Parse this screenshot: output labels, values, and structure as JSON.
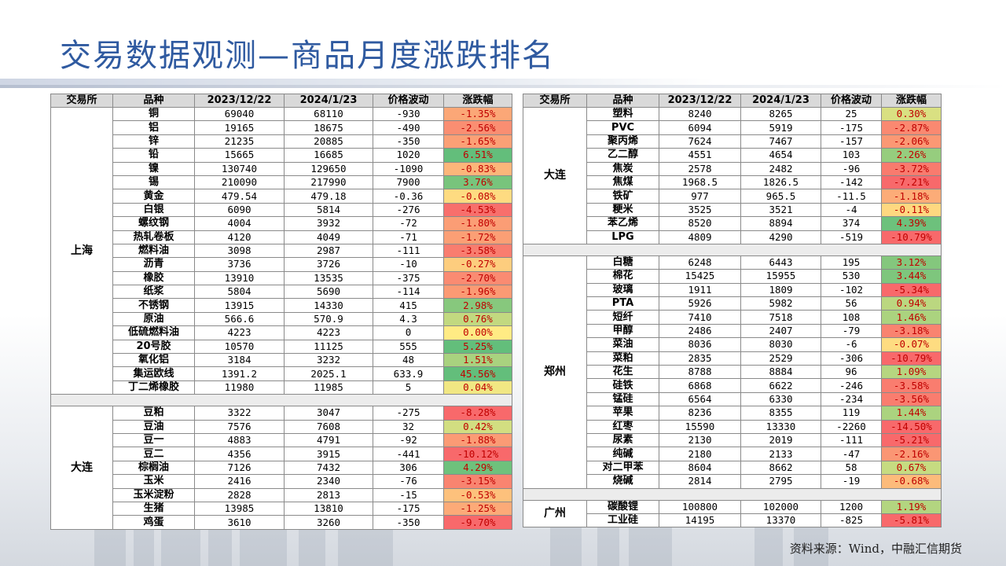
{
  "title": "交易数据观测—商品月度涨跌排名",
  "source": "资料来源：Wind，中融汇信期货",
  "headers": [
    "交易所",
    "品种",
    "2023/12/22",
    "2024/1/23",
    "价格波动",
    "涨跌幅"
  ],
  "colors": {
    "header_bg": "#d9d9d9",
    "scale_low": "#f8696b",
    "scale_mid": "#ffeb84",
    "scale_high": "#63be7b",
    "pct_text": "#c00000",
    "title": "#2f5aa0"
  },
  "left_groups": [
    {
      "exchange": "上海",
      "rows": [
        {
          "name": "铜",
          "v1": "69040",
          "v2": "68110",
          "chg": "-930",
          "pct": "-1.35%",
          "pv": -1.35
        },
        {
          "name": "铝",
          "v1": "19165",
          "v2": "18675",
          "chg": "-490",
          "pct": "-2.56%",
          "pv": -2.56
        },
        {
          "name": "锌",
          "v1": "21235",
          "v2": "20885",
          "chg": "-350",
          "pct": "-1.65%",
          "pv": -1.65
        },
        {
          "name": "铅",
          "v1": "15665",
          "v2": "16685",
          "chg": "1020",
          "pct": "6.51%",
          "pv": 6.51
        },
        {
          "name": "镍",
          "v1": "130740",
          "v2": "129650",
          "chg": "-1090",
          "pct": "-0.83%",
          "pv": -0.83
        },
        {
          "name": "锡",
          "v1": "210090",
          "v2": "217990",
          "chg": "7900",
          "pct": "3.76%",
          "pv": 3.76
        },
        {
          "name": "黄金",
          "v1": "479.54",
          "v2": "479.18",
          "chg": "-0.36",
          "pct": "-0.08%",
          "pv": -0.08
        },
        {
          "name": "白银",
          "v1": "6090",
          "v2": "5814",
          "chg": "-276",
          "pct": "-4.53%",
          "pv": -4.53
        },
        {
          "name": "螺纹钢",
          "v1": "4004",
          "v2": "3932",
          "chg": "-72",
          "pct": "-1.80%",
          "pv": -1.8
        },
        {
          "name": "热轧卷板",
          "v1": "4120",
          "v2": "4049",
          "chg": "-71",
          "pct": "-1.72%",
          "pv": -1.72
        },
        {
          "name": "燃料油",
          "v1": "3098",
          "v2": "2987",
          "chg": "-111",
          "pct": "-3.58%",
          "pv": -3.58
        },
        {
          "name": "沥青",
          "v1": "3736",
          "v2": "3726",
          "chg": "-10",
          "pct": "-0.27%",
          "pv": -0.27
        },
        {
          "name": "橡胶",
          "v1": "13910",
          "v2": "13535",
          "chg": "-375",
          "pct": "-2.70%",
          "pv": -2.7
        },
        {
          "name": "纸浆",
          "v1": "5804",
          "v2": "5690",
          "chg": "-114",
          "pct": "-1.96%",
          "pv": -1.96
        },
        {
          "name": "不锈钢",
          "v1": "13915",
          "v2": "14330",
          "chg": "415",
          "pct": "2.98%",
          "pv": 2.98
        },
        {
          "name": "原油",
          "v1": "566.6",
          "v2": "570.9",
          "chg": "4.3",
          "pct": "0.76%",
          "pv": 0.76
        },
        {
          "name": "低硫燃料油",
          "v1": "4223",
          "v2": "4223",
          "chg": "0",
          "pct": "0.00%",
          "pv": 0.0
        },
        {
          "name": "20号胶",
          "v1": "10570",
          "v2": "11125",
          "chg": "555",
          "pct": "5.25%",
          "pv": 5.25
        },
        {
          "name": "氧化铝",
          "v1": "3184",
          "v2": "3232",
          "chg": "48",
          "pct": "1.51%",
          "pv": 1.51
        },
        {
          "name": "集运欧线",
          "v1": "1391.2",
          "v2": "2025.1",
          "chg": "633.9",
          "pct": "45.56%",
          "pv": 45.56
        },
        {
          "name": "丁二烯橡胶",
          "v1": "11980",
          "v2": "11985",
          "chg": "5",
          "pct": "0.04%",
          "pv": 0.04
        }
      ]
    },
    {
      "exchange": "大连",
      "rows": [
        {
          "name": "豆粕",
          "v1": "3322",
          "v2": "3047",
          "chg": "-275",
          "pct": "-8.28%",
          "pv": -8.28
        },
        {
          "name": "豆油",
          "v1": "7576",
          "v2": "7608",
          "chg": "32",
          "pct": "0.42%",
          "pv": 0.42
        },
        {
          "name": "豆一",
          "v1": "4883",
          "v2": "4791",
          "chg": "-92",
          "pct": "-1.88%",
          "pv": -1.88
        },
        {
          "name": "豆二",
          "v1": "4356",
          "v2": "3915",
          "chg": "-441",
          "pct": "-10.12%",
          "pv": -10.12
        },
        {
          "name": "棕榈油",
          "v1": "7126",
          "v2": "7432",
          "chg": "306",
          "pct": "4.29%",
          "pv": 4.29
        },
        {
          "name": "玉米",
          "v1": "2416",
          "v2": "2340",
          "chg": "-76",
          "pct": "-3.15%",
          "pv": -3.15
        },
        {
          "name": "玉米淀粉",
          "v1": "2828",
          "v2": "2813",
          "chg": "-15",
          "pct": "-0.53%",
          "pv": -0.53
        },
        {
          "name": "生猪",
          "v1": "13985",
          "v2": "13810",
          "chg": "-175",
          "pct": "-1.25%",
          "pv": -1.25
        },
        {
          "name": "鸡蛋",
          "v1": "3610",
          "v2": "3260",
          "chg": "-350",
          "pct": "-9.70%",
          "pv": -9.7
        }
      ]
    }
  ],
  "right_groups": [
    {
      "exchange": "大连",
      "rows": [
        {
          "name": "塑料",
          "v1": "8240",
          "v2": "8265",
          "chg": "25",
          "pct": "0.30%",
          "pv": 0.3
        },
        {
          "name": "PVC",
          "v1": "6094",
          "v2": "5919",
          "chg": "-175",
          "pct": "-2.87%",
          "pv": -2.87
        },
        {
          "name": "聚丙烯",
          "v1": "7624",
          "v2": "7467",
          "chg": "-157",
          "pct": "-2.06%",
          "pv": -2.06
        },
        {
          "name": "乙二醇",
          "v1": "4551",
          "v2": "4654",
          "chg": "103",
          "pct": "2.26%",
          "pv": 2.26
        },
        {
          "name": "焦炭",
          "v1": "2578",
          "v2": "2482",
          "chg": "-96",
          "pct": "-3.72%",
          "pv": -3.72
        },
        {
          "name": "焦煤",
          "v1": "1968.5",
          "v2": "1826.5",
          "chg": "-142",
          "pct": "-7.21%",
          "pv": -7.21
        },
        {
          "name": "铁矿",
          "v1": "977",
          "v2": "965.5",
          "chg": "-11.5",
          "pct": "-1.18%",
          "pv": -1.18
        },
        {
          "name": "粳米",
          "v1": "3525",
          "v2": "3521",
          "chg": "-4",
          "pct": "-0.11%",
          "pv": -0.11
        },
        {
          "name": "苯乙烯",
          "v1": "8520",
          "v2": "8894",
          "chg": "374",
          "pct": "4.39%",
          "pv": 4.39
        },
        {
          "name": "LPG",
          "v1": "4809",
          "v2": "4290",
          "chg": "-519",
          "pct": "-10.79%",
          "pv": -10.79
        }
      ]
    },
    {
      "exchange": "郑州",
      "rows": [
        {
          "name": "白糖",
          "v1": "6248",
          "v2": "6443",
          "chg": "195",
          "pct": "3.12%",
          "pv": 3.12
        },
        {
          "name": "棉花",
          "v1": "15425",
          "v2": "15955",
          "chg": "530",
          "pct": "3.44%",
          "pv": 3.44
        },
        {
          "name": "玻璃",
          "v1": "1911",
          "v2": "1809",
          "chg": "-102",
          "pct": "-5.34%",
          "pv": -5.34
        },
        {
          "name": "PTA",
          "v1": "5926",
          "v2": "5982",
          "chg": "56",
          "pct": "0.94%",
          "pv": 0.94
        },
        {
          "name": "短纤",
          "v1": "7410",
          "v2": "7518",
          "chg": "108",
          "pct": "1.46%",
          "pv": 1.46
        },
        {
          "name": "甲醇",
          "v1": "2486",
          "v2": "2407",
          "chg": "-79",
          "pct": "-3.18%",
          "pv": -3.18
        },
        {
          "name": "菜油",
          "v1": "8036",
          "v2": "8030",
          "chg": "-6",
          "pct": "-0.07%",
          "pv": -0.07
        },
        {
          "name": "菜粕",
          "v1": "2835",
          "v2": "2529",
          "chg": "-306",
          "pct": "-10.79%",
          "pv": -10.79
        },
        {
          "name": "花生",
          "v1": "8788",
          "v2": "8884",
          "chg": "96",
          "pct": "1.09%",
          "pv": 1.09
        },
        {
          "name": "硅铁",
          "v1": "6868",
          "v2": "6622",
          "chg": "-246",
          "pct": "-3.58%",
          "pv": -3.58
        },
        {
          "name": "锰硅",
          "v1": "6564",
          "v2": "6330",
          "chg": "-234",
          "pct": "-3.56%",
          "pv": -3.56
        },
        {
          "name": "苹果",
          "v1": "8236",
          "v2": "8355",
          "chg": "119",
          "pct": "1.44%",
          "pv": 1.44
        },
        {
          "name": "红枣",
          "v1": "15590",
          "v2": "13330",
          "chg": "-2260",
          "pct": "-14.50%",
          "pv": -14.5
        },
        {
          "name": "尿素",
          "v1": "2130",
          "v2": "2019",
          "chg": "-111",
          "pct": "-5.21%",
          "pv": -5.21
        },
        {
          "name": "纯碱",
          "v1": "2180",
          "v2": "2133",
          "chg": "-47",
          "pct": "-2.16%",
          "pv": -2.16
        },
        {
          "name": "对二甲苯",
          "v1": "8604",
          "v2": "8662",
          "chg": "58",
          "pct": "0.67%",
          "pv": 0.67
        },
        {
          "name": "烧碱",
          "v1": "2814",
          "v2": "2795",
          "chg": "-19",
          "pct": "-0.68%",
          "pv": -0.68
        }
      ]
    },
    {
      "exchange": "广州",
      "rows": [
        {
          "name": "碳酸锂",
          "v1": "100800",
          "v2": "102000",
          "chg": "1200",
          "pct": "1.19%",
          "pv": 1.19
        },
        {
          "name": "工业硅",
          "v1": "14195",
          "v2": "13370",
          "chg": "-825",
          "pct": "-5.81%",
          "pv": -5.81
        }
      ]
    }
  ]
}
